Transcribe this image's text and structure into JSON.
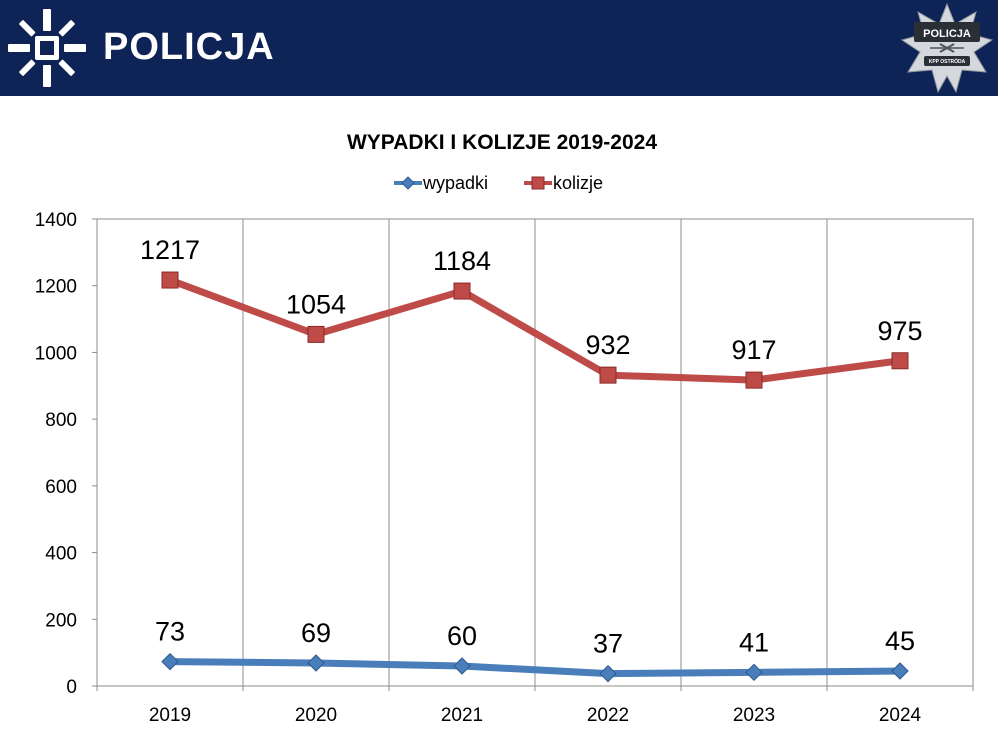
{
  "header": {
    "brand_name": "POLICJA",
    "badge_top": "POLICJA",
    "badge_bottom": "KPP OSTRÓDA",
    "brand_logo_icon": "police-star-logo-icon",
    "badge_icon": "police-badge-icon",
    "background_color": "#0f2456"
  },
  "chart_data": {
    "type": "line",
    "title": "WYPADKI I KOLIZJE 2019-2024",
    "xlabel": "",
    "ylabel": "",
    "categories": [
      "2019",
      "2020",
      "2021",
      "2022",
      "2023",
      "2024"
    ],
    "ylim": [
      0,
      1400
    ],
    "yticks": [
      0,
      200,
      400,
      600,
      800,
      1000,
      1200,
      1400
    ],
    "grid": "vertical",
    "legend_position": "top-center",
    "series": [
      {
        "name": "wypadki",
        "values": [
          73,
          69,
          60,
          37,
          41,
          45
        ],
        "color": "#4a7ebb",
        "marker": "diamond"
      },
      {
        "name": "kolizje",
        "values": [
          1217,
          1054,
          1184,
          932,
          917,
          975
        ],
        "color": "#be4b48",
        "marker": "square"
      }
    ]
  }
}
